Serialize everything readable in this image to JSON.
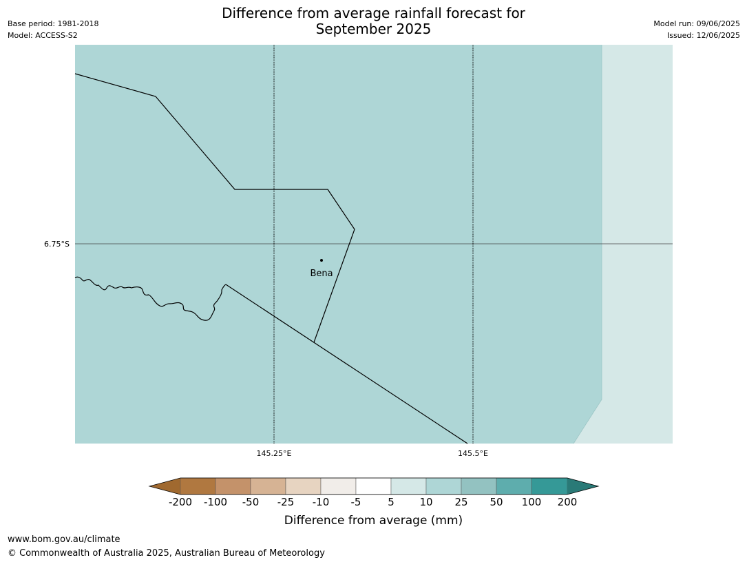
{
  "title": {
    "line1": "Difference from average rainfall forecast for",
    "line2": "September 2025"
  },
  "meta_left": {
    "base_period": "Base period: 1981-2018",
    "model": "Model: ACCESS-S2"
  },
  "meta_right": {
    "model_run": "Model run: 09/06/2025",
    "issued": "Issued: 12/06/2025"
  },
  "map": {
    "lat_label": "6.75°S",
    "lon_labels": [
      "145.25°E",
      "145.5°E"
    ],
    "place_label": "Bena",
    "fill_colors": {
      "main": "#aed6d6",
      "east": "#d5e8e7"
    }
  },
  "legend": {
    "title": "Difference from average (mm)",
    "tick_labels": [
      "-200",
      "-100",
      "-50",
      "-25",
      "-10",
      "-5",
      "5",
      "10",
      "25",
      "50",
      "100",
      "200"
    ],
    "colors": [
      "#a0692f",
      "#b07840",
      "#c4926a",
      "#d6b394",
      "#e7d4c1",
      "#f1ede9",
      "#ffffff",
      "#d5e8e7",
      "#aed6d6",
      "#93c2c1",
      "#5eadad",
      "#359997",
      "#2a7a77"
    ]
  },
  "footer": {
    "url": "www.bom.gov.au/climate",
    "copyright": "© Commonwealth of Australia 2025, Australian Bureau of Meteorology"
  }
}
